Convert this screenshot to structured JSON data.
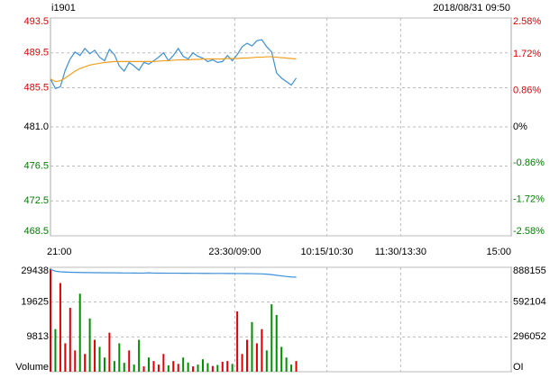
{
  "chart_data": [
    {
      "type": "line",
      "title": "i1901",
      "subtitle": "2018/08/31 09:50",
      "x": [
        0,
        4,
        8,
        12,
        16,
        20,
        24,
        28,
        32,
        36,
        40,
        44,
        48,
        52,
        56,
        60,
        64,
        68,
        72,
        76,
        80,
        84,
        88,
        92,
        96,
        100,
        104,
        108,
        112,
        116,
        120,
        124,
        128,
        132,
        136,
        140,
        144,
        148,
        152,
        156,
        160,
        164,
        168,
        172,
        176,
        180,
        184,
        188,
        192,
        196,
        200
      ],
      "xlim": [
        0,
        375
      ],
      "xticks": [
        {
          "value": 0,
          "label": "21:00"
        },
        {
          "value": 150,
          "label": "23:30/09:00"
        },
        {
          "value": 225,
          "label": "10:15/10:30"
        },
        {
          "value": 285,
          "label": "11:30/13:30"
        },
        {
          "value": 375,
          "label": "15:00"
        }
      ],
      "ylim": [
        468.5,
        493.5
      ],
      "yticks": [
        493.5,
        489.5,
        485.5,
        {
          "value": 481,
          "label": "481.0"
        },
        476.5,
        472.5,
        468.5
      ],
      "y2lim": [
        -2.58,
        2.58
      ],
      "y2ticks": [
        {
          "value": 2.58,
          "label": "2.58%"
        },
        {
          "value": 1.72,
          "label": "1.72%"
        },
        {
          "value": 0.86,
          "label": "0.86%"
        },
        {
          "value": 0,
          "label": "0%"
        },
        {
          "value": -0.86,
          "label": "-0.86%"
        },
        {
          "value": -1.72,
          "label": "-1.72%"
        },
        {
          "value": -2.58,
          "label": "-2.58%"
        }
      ],
      "up_color": "#e00000",
      "flat_color": "#000000",
      "down_color": "#008000",
      "grid": true,
      "series": [
        {
          "type": "line",
          "color": "#3a8fd8",
          "values": [
            486.5,
            485.4,
            485.6,
            487.5,
            488.8,
            489.6,
            489.2,
            490.0,
            489.4,
            489.8,
            489.0,
            488.6,
            489.9,
            489.3,
            488.0,
            487.4,
            488.4,
            488.0,
            487.5,
            488.4,
            488.2,
            488.6,
            489.0,
            489.5,
            488.6,
            489.2,
            490.0,
            489.1,
            488.8,
            489.5,
            489.1,
            488.9,
            488.5,
            488.7,
            488.4,
            488.5,
            489.2,
            488.6,
            489.3,
            490.2,
            490.6,
            490.3,
            490.9,
            491.0,
            490.2,
            489.6,
            487.2,
            486.6,
            486.2,
            485.8,
            486.6
          ]
        },
        {
          "type": "line",
          "color": "#f0a020",
          "values": [
            486.5,
            486.2,
            486.3,
            486.6,
            487.0,
            487.4,
            487.7,
            487.9,
            488.1,
            488.2,
            488.3,
            488.4,
            488.45,
            488.5,
            488.5,
            488.5,
            488.5,
            488.5,
            488.5,
            488.5,
            488.5,
            488.5,
            488.55,
            488.6,
            488.6,
            488.65,
            488.7,
            488.7,
            488.7,
            488.75,
            488.75,
            488.8,
            488.8,
            488.8,
            488.8,
            488.8,
            488.85,
            488.85,
            488.85,
            488.9,
            488.9,
            488.95,
            489.0,
            489.0,
            489.05,
            489.05,
            489.0,
            488.95,
            488.9,
            488.85,
            488.8
          ]
        }
      ]
    },
    {
      "type": "bar",
      "x": [
        0,
        4,
        8,
        12,
        16,
        20,
        24,
        28,
        32,
        36,
        40,
        44,
        48,
        52,
        56,
        60,
        64,
        68,
        72,
        76,
        80,
        84,
        88,
        92,
        96,
        100,
        104,
        108,
        112,
        116,
        120,
        124,
        128,
        132,
        136,
        140,
        144,
        148,
        152,
        156,
        160,
        164,
        168,
        172,
        176,
        180,
        184,
        188,
        192,
        196,
        200
      ],
      "xlim": [
        0,
        375
      ],
      "ylim": [
        0,
        29438
      ],
      "yticks": [
        {
          "value": 0,
          "label": "Volume"
        },
        9813,
        19625,
        29438
      ],
      "y2lim": [
        0,
        888155
      ],
      "y2ticks": [
        {
          "value": 0,
          "label": "OI"
        },
        296052,
        592104,
        888155
      ],
      "grid": true,
      "series": [
        {
          "type": "bar",
          "values": [
            29000,
            12000,
            25000,
            8000,
            18000,
            6000,
            22000,
            5000,
            15000,
            9000,
            7000,
            4000,
            11000,
            3000,
            8000,
            2500,
            6000,
            2000,
            9000,
            1500,
            4000,
            3000,
            2000,
            5000,
            1800,
            3000,
            2200,
            4000,
            2600,
            1500,
            2000,
            3500,
            2400,
            1600,
            1900,
            2800,
            3000,
            2200,
            17000,
            5000,
            9000,
            14000,
            8000,
            12000,
            6000,
            19000,
            16000,
            7000,
            4000,
            2000,
            3000
          ],
          "colors": [
            "#e00000",
            "#009000",
            "#e00000",
            "#e00000",
            "#e00000",
            "#e00000",
            "#009000",
            "#e00000",
            "#009000",
            "#e00000",
            "#009000",
            "#009000",
            "#e00000",
            "#009000",
            "#009000",
            "#009000",
            "#e00000",
            "#009000",
            "#009000",
            "#e00000",
            "#009000",
            "#e00000",
            "#e00000",
            "#e00000",
            "#009000",
            "#e00000",
            "#e00000",
            "#009000",
            "#009000",
            "#e00000",
            "#009000",
            "#009000",
            "#009000",
            "#e00000",
            "#009000",
            "#e00000",
            "#e00000",
            "#009000",
            "#e00000",
            "#e00000",
            "#e00000",
            "#009000",
            "#e00000",
            "#e00000",
            "#009000",
            "#009000",
            "#009000",
            "#009000",
            "#009000",
            "#009000",
            "#e00000"
          ]
        },
        {
          "type": "line",
          "axis": "y2",
          "color": "#3a8fd8",
          "values": [
            870000,
            855000,
            850000,
            848000,
            846000,
            845000,
            844000,
            843000,
            843000,
            842000,
            842000,
            841500,
            841000,
            841000,
            840500,
            840000,
            840000,
            839500,
            839000,
            839000,
            841000,
            839000,
            838500,
            838500,
            838000,
            838000,
            838000,
            837500,
            837500,
            837000,
            837000,
            836500,
            836500,
            836000,
            836000,
            836000,
            835500,
            835500,
            835000,
            835000,
            834500,
            834000,
            833000,
            832000,
            830000,
            826000,
            820000,
            815000,
            810000,
            806000,
            805000
          ]
        }
      ]
    }
  ]
}
